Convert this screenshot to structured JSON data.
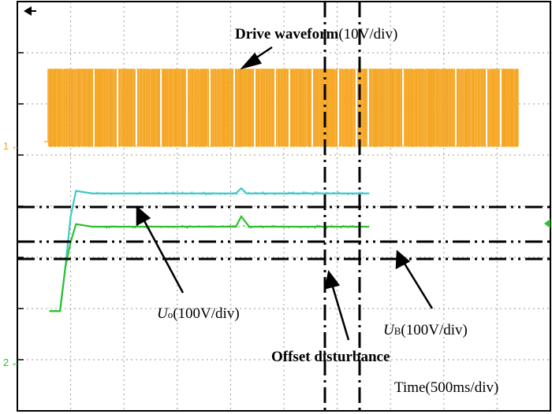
{
  "chart_data": {
    "type": "line",
    "title": "",
    "xlabel": "Time(500ms/div)",
    "ylabel": "",
    "grid": true,
    "grid_divisions": {
      "x": 10,
      "y": 8
    },
    "x_unit_per_div": "500ms",
    "channel_markers": [
      "1",
      "2"
    ],
    "series": [
      {
        "name": "Drive waveform",
        "scale": "10V/div",
        "color": "#f5a623",
        "description_values": {
          "low_level_div": 0,
          "high_level_div": 1.0,
          "start_div": 0.9
        }
      },
      {
        "name": "U0",
        "scale": "100V/div",
        "color": "#3cc8c8",
        "points": [
          [
            0.6,
            -2.05
          ],
          [
            0.8,
            -2.05
          ],
          [
            0.9,
            -1.2
          ],
          [
            1.0,
            -0.2
          ],
          [
            1.1,
            0.3
          ],
          [
            1.4,
            0.25
          ],
          [
            3.5,
            0.25
          ],
          [
            4.1,
            0.25
          ],
          [
            4.2,
            0.35
          ],
          [
            4.3,
            0.25
          ],
          [
            6.6,
            0.25
          ]
        ]
      },
      {
        "name": "UB",
        "scale": "100V/div",
        "color": "#2ec02e",
        "points": [
          [
            0.6,
            -2.05
          ],
          [
            0.8,
            -2.05
          ],
          [
            0.9,
            -1.2
          ],
          [
            1.0,
            -0.7
          ],
          [
            1.1,
            -0.35
          ],
          [
            1.4,
            -0.4
          ],
          [
            3.9,
            -0.4
          ],
          [
            4.1,
            -0.4
          ],
          [
            4.2,
            -0.2
          ],
          [
            4.35,
            -0.4
          ],
          [
            6.6,
            -0.4
          ]
        ]
      }
    ],
    "annotations": {
      "drive_label_bold": "Drive waveform",
      "drive_label_rest": "(10V/div)",
      "u0_label_main": "U",
      "u0_label_sub": "o",
      "u0_label_rest": "(100V/div)",
      "ub_label_main": "U",
      "ub_label_sub": "B",
      "ub_label_rest": "(100V/div)",
      "offset_label": "Offset disturbance",
      "time_label": "Time(500ms/div)"
    }
  }
}
